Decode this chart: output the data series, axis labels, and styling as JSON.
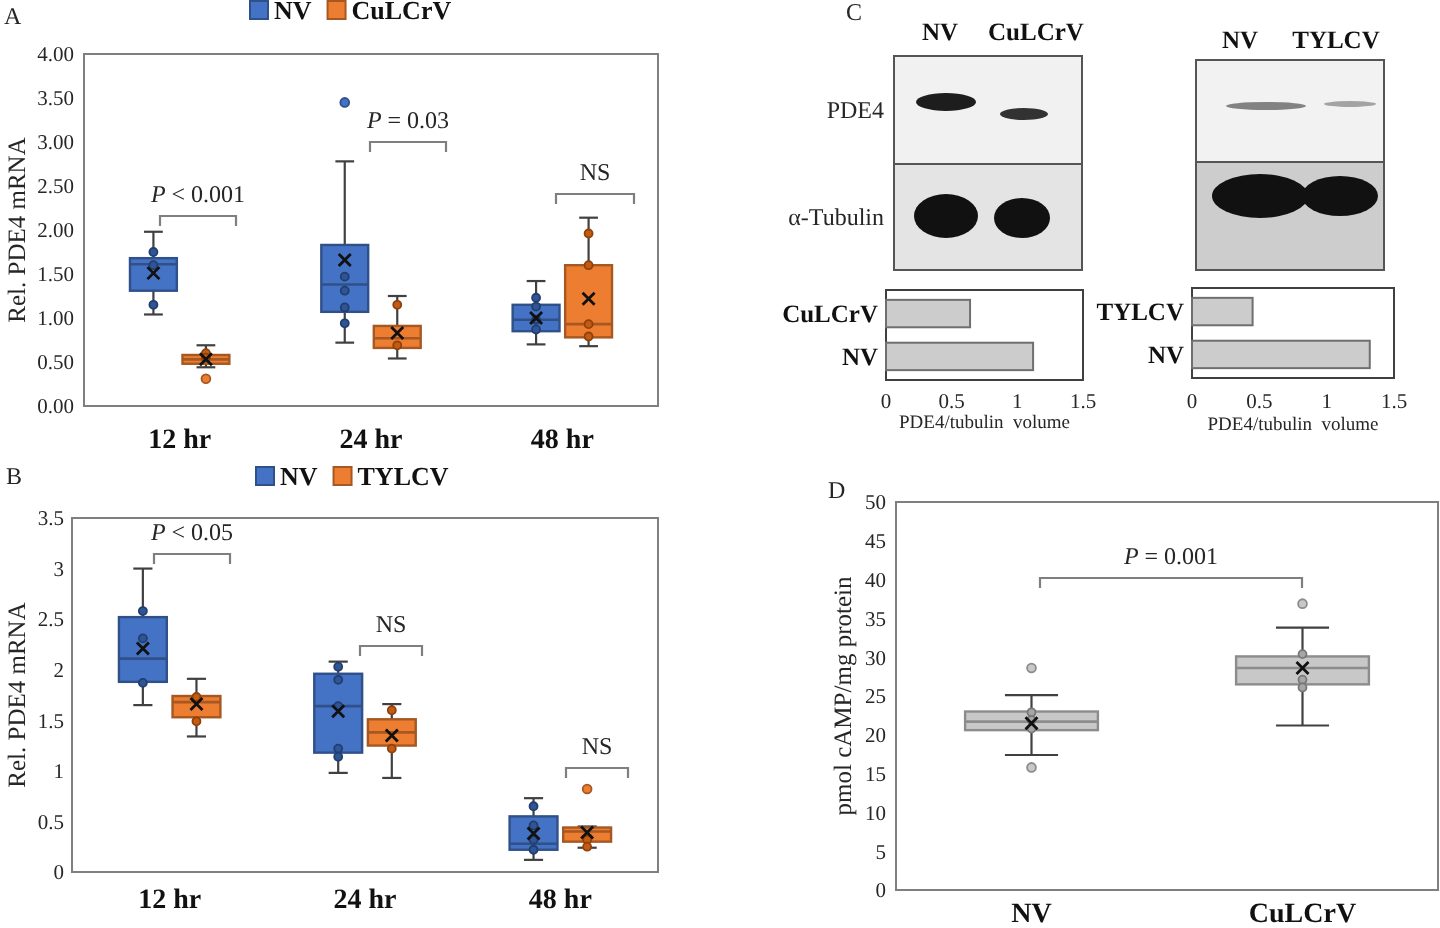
{
  "chart_data": [
    {
      "type": "box",
      "title": "A",
      "categories": [
        "12 hr",
        "24 hr",
        "48 hr"
      ],
      "ylabel": "Rel. PDE4 mRNA",
      "ylim": [
        0,
        4
      ],
      "yticks": [
        {
          "value": 0,
          "label": "0.00"
        },
        {
          "value": 0.5,
          "label": "0.50"
        },
        {
          "value": 1,
          "label": "1.00"
        },
        {
          "value": 1.5,
          "label": "1.50"
        },
        {
          "value": 2,
          "label": "2.00"
        },
        {
          "value": 2.5,
          "label": "2.50"
        },
        {
          "value": 3,
          "label": "3.00"
        },
        {
          "value": 3.5,
          "label": "3.50"
        },
        {
          "value": 4,
          "label": "4.00"
        }
      ],
      "legend": "top",
      "marker": "circle",
      "series": [
        {
          "name": "NV",
          "type": "box",
          "color": "#4472c4",
          "boxes": [
            {
              "low": 1.04,
              "q1": 1.31,
              "median": 1.61,
              "q3": 1.68,
              "high": 1.98,
              "mean": 1.51
            },
            {
              "low": 0.72,
              "q1": 1.07,
              "median": 1.38,
              "q3": 1.83,
              "high": 2.78,
              "mean": 1.66,
              "outliers": [
                3.45
              ]
            },
            {
              "low": 0.7,
              "q1": 0.85,
              "median": 0.98,
              "q3": 1.15,
              "high": 1.42,
              "mean": 1.0
            }
          ]
        },
        {
          "name": "CuLCrV",
          "type": "box",
          "color": "#ed7d31",
          "boxes": [
            {
              "low": 0.44,
              "q1": 0.48,
              "median": 0.53,
              "q3": 0.58,
              "high": 0.69,
              "mean": 0.53,
              "outliers": [
                0.31
              ]
            },
            {
              "low": 0.54,
              "q1": 0.66,
              "median": 0.77,
              "q3": 0.91,
              "high": 1.25,
              "mean": 0.83
            },
            {
              "low": 0.68,
              "q1": 0.78,
              "median": 0.93,
              "q3": 1.6,
              "high": 2.14,
              "mean": 1.22
            }
          ]
        },
        {
          "type": "scatter",
          "color": "#2f5597",
          "x": [
            "12 hr",
            "12 hr",
            "12 hr",
            "24 hr",
            "24 hr",
            "24 hr",
            "24 hr",
            "48 hr",
            "48 hr",
            "48 hr",
            "48 hr"
          ],
          "values": [
            1.75,
            1.6,
            1.15,
            1.47,
            1.31,
            1.12,
            0.94,
            1.23,
            1.13,
            0.98,
            0.87
          ]
        },
        {
          "type": "scatter",
          "color": "#c55a11",
          "x": [
            "12 hr",
            "12 hr",
            "24 hr",
            "24 hr",
            "48 hr",
            "48 hr",
            "48 hr",
            "48 hr"
          ],
          "values": [
            0.6,
            0.55,
            1.15,
            0.69,
            1.96,
            1.6,
            0.93,
            0.79
          ]
        }
      ],
      "annotations": [
        "P < 0.001",
        "P = 0.03",
        "NS"
      ]
    },
    {
      "type": "bar",
      "title": "C",
      "orientation": "horizontal",
      "categories": [
        "CuLCrV",
        "NV"
      ],
      "values": [
        0.64,
        1.12
      ],
      "color": "#cccccc",
      "xlim": [
        0,
        1.5
      ],
      "xticks": [
        0,
        0.5,
        1,
        1.5
      ],
      "xlabel": "PDE4/tubulin  volume",
      "annotations": [
        "NV",
        "CuLCrV",
        "PDE4",
        "α-Tubulin"
      ]
    },
    {
      "type": "bar",
      "orientation": "horizontal",
      "categories": [
        "TYLCV",
        "NV"
      ],
      "values": [
        0.45,
        1.32
      ],
      "color": "#cccccc",
      "xlim": [
        0,
        1.5
      ],
      "xticks": [
        0,
        0.5,
        1,
        1.5
      ],
      "xlabel": "PDE4/tubulin  volume",
      "annotations": [
        "NV",
        "TYLCV"
      ]
    },
    {
      "type": "box",
      "title": "B",
      "categories": [
        "12 hr",
        "24 hr",
        "48 hr"
      ],
      "ylabel": "Rel. PDE4 mRNA",
      "ylim": [
        0,
        3.5
      ],
      "yticks": [
        0,
        0.5,
        1,
        1.5,
        2,
        2.5,
        3,
        3.5
      ],
      "legend": "top",
      "marker": "circle",
      "series": [
        {
          "name": "NV",
          "type": "box",
          "color": "#4472c4",
          "boxes": [
            {
              "low": 1.65,
              "q1": 1.88,
              "median": 2.11,
              "q3": 2.52,
              "high": 3.0,
              "mean": 2.21
            },
            {
              "low": 0.98,
              "q1": 1.18,
              "median": 1.64,
              "q3": 1.96,
              "high": 2.08,
              "mean": 1.59
            },
            {
              "low": 0.12,
              "q1": 0.22,
              "median": 0.28,
              "q3": 0.55,
              "high": 0.73,
              "mean": 0.38
            }
          ]
        },
        {
          "name": "TYLCV",
          "type": "box",
          "color": "#ed7d31",
          "boxes": [
            {
              "low": 1.34,
              "q1": 1.53,
              "median": 1.68,
              "q3": 1.74,
              "high": 1.91,
              "mean": 1.66
            },
            {
              "low": 0.93,
              "q1": 1.25,
              "median": 1.38,
              "q3": 1.51,
              "high": 1.66,
              "mean": 1.35
            },
            {
              "low": 0.24,
              "q1": 0.3,
              "median": 0.4,
              "q3": 0.44,
              "high": 0.45,
              "mean": 0.39,
              "outliers": [
                0.82
              ]
            }
          ]
        },
        {
          "type": "scatter",
          "color": "#2f5597",
          "x": [
            "12 hr",
            "12 hr",
            "12 hr",
            "24 hr",
            "24 hr",
            "24 hr",
            "24 hr",
            "24 hr",
            "48 hr",
            "48 hr",
            "48 hr",
            "48 hr"
          ],
          "values": [
            2.58,
            2.31,
            1.87,
            2.03,
            1.9,
            1.64,
            1.22,
            1.14,
            0.65,
            0.46,
            0.32,
            0.22
          ]
        },
        {
          "type": "scatter",
          "color": "#c55a11",
          "x": [
            "12 hr",
            "12 hr",
            "24 hr",
            "24 hr",
            "48 hr",
            "48 hr"
          ],
          "values": [
            1.73,
            1.49,
            1.6,
            1.22,
            0.32,
            0.25
          ]
        }
      ],
      "annotations": [
        "P < 0.05",
        "NS",
        "NS"
      ]
    },
    {
      "type": "box",
      "title": "D",
      "categories": [
        "NV",
        "CuLCrV"
      ],
      "ylabel": "pmol cAMP/mg protein",
      "ylim": [
        0,
        50
      ],
      "yticks": [
        0,
        5,
        10,
        15,
        20,
        25,
        30,
        35,
        40,
        45,
        50
      ],
      "marker": "circle",
      "series": [
        {
          "type": "box",
          "color": "#c8c8c8",
          "boxes": [
            {
              "low": 17.4,
              "q1": 20.6,
              "median": 21.7,
              "q3": 23.0,
              "high": 25.1,
              "mean": 21.5,
              "outliers": [
                28.6,
                15.8
              ]
            },
            {
              "low": 21.2,
              "q1": 26.5,
              "median": 28.6,
              "q3": 30.1,
              "high": 33.8,
              "mean": 28.6,
              "outliers": [
                36.9
              ]
            }
          ]
        },
        {
          "type": "scatter",
          "color": "#a6a6a6",
          "x": [
            "NV",
            "NV",
            "NV",
            "CuLCrV",
            "CuLCrV",
            "CuLCrV"
          ],
          "values": [
            22.9,
            21.9,
            20.8,
            30.4,
            27.1,
            26.1
          ]
        }
      ],
      "annotations": [
        "P = 0.001"
      ]
    }
  ]
}
